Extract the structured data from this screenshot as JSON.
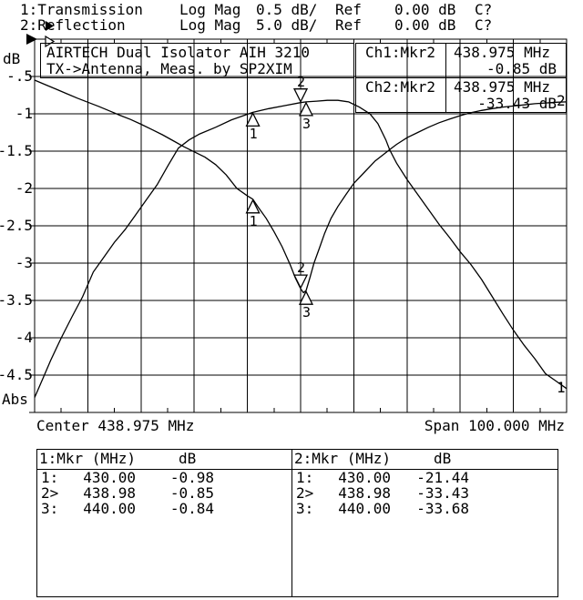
{
  "header": {
    "channels": [
      {
        "indicator": "filled-right-triangle",
        "label": "1:Transmission",
        "format": "Log Mag",
        "scale": "0.5 dB/",
        "ref_label": "Ref",
        "ref_value": "0.00 dB",
        "cal_status": "C?"
      },
      {
        "indicator": "open-right-triangle",
        "label": "2:Reflection",
        "format": "Log Mag",
        "scale": "5.0 dB/",
        "ref_label": "Ref",
        "ref_value": "0.00 dB",
        "cal_status": "C?"
      }
    ]
  },
  "plot": {
    "title_lines": [
      "AIRTECH Dual Isolator AIH 3210",
      "TX->Antenna, Meas. by SP2XIM"
    ],
    "readouts": [
      {
        "channel": "Ch1:Mkr2",
        "freq": "438.975 MHz",
        "value": "-0.85 dB"
      },
      {
        "channel": "Ch2:Mkr2",
        "freq": "438.975 MHz",
        "value": "-33.43 dB"
      }
    ],
    "y_axis": {
      "top_label": "dB",
      "bottom_label": "Abs",
      "tick_labels": [
        "-.5",
        "-1",
        "-1.5",
        "-2",
        "-2.5",
        "-3",
        "-3.5",
        "-4",
        "-4.5"
      ]
    },
    "x_axis": {
      "center_label": "Center 438.975 MHz",
      "span_label": "Span 100.000 MHz"
    }
  },
  "marker_tables": [
    {
      "header_left": "1:Mkr (MHz)",
      "header_right": "dB",
      "rows": [
        {
          "id": "1:",
          "freq": "430.00",
          "db": "-0.98"
        },
        {
          "id": "2>",
          "freq": "438.98",
          "db": "-0.85"
        },
        {
          "id": "3:",
          "freq": "440.00",
          "db": "-0.84"
        }
      ]
    },
    {
      "header_left": "2:Mkr (MHz)",
      "header_right": "dB",
      "rows": [
        {
          "id": "1:",
          "freq": "430.00",
          "db": "-21.44"
        },
        {
          "id": "2>",
          "freq": "438.98",
          "db": "-33.43"
        },
        {
          "id": "3:",
          "freq": "440.00",
          "db": "-33.68"
        }
      ]
    }
  ],
  "chart_data": {
    "type": "line",
    "title": "AIRTECH Dual Isolator AIH 3210, TX->Antenna",
    "x_axis": {
      "center_mhz": 438.975,
      "span_mhz": 100.0,
      "start_mhz": 388.975,
      "stop_mhz": 488.975,
      "divisions": 10
    },
    "y_axis": {
      "units": "dB",
      "mode": "Log Mag",
      "divisions": 10
    },
    "grid": true,
    "series": [
      {
        "name": "1:Transmission",
        "scale_db_per_div": 0.5,
        "ref_db": 0.0,
        "ylim": [
          0,
          -5
        ],
        "end_label": "1",
        "markers": [
          {
            "n": "1",
            "freq_mhz": 430.0,
            "db": -0.98,
            "active": false
          },
          {
            "n": "2",
            "freq_mhz": 438.98,
            "db": -0.85,
            "active": true
          },
          {
            "n": "3",
            "freq_mhz": 440.0,
            "db": -0.84,
            "active": false
          }
        ],
        "points": [
          [
            388.975,
            -4.8
          ],
          [
            390.5,
            -4.55
          ],
          [
            392,
            -4.3
          ],
          [
            394,
            -4.0
          ],
          [
            396,
            -3.72
          ],
          [
            398,
            -3.45
          ],
          [
            400,
            -3.12
          ],
          [
            402,
            -2.92
          ],
          [
            404,
            -2.72
          ],
          [
            406,
            -2.55
          ],
          [
            408,
            -2.35
          ],
          [
            410,
            -2.15
          ],
          [
            412,
            -1.95
          ],
          [
            414,
            -1.7
          ],
          [
            416,
            -1.46
          ],
          [
            418,
            -1.35
          ],
          [
            420,
            -1.27
          ],
          [
            423,
            -1.18
          ],
          [
            426,
            -1.08
          ],
          [
            430,
            -0.98
          ],
          [
            433,
            -0.93
          ],
          [
            436,
            -0.89
          ],
          [
            438.98,
            -0.85
          ],
          [
            440,
            -0.84
          ],
          [
            442,
            -0.83
          ],
          [
            444,
            -0.82
          ],
          [
            446,
            -0.82
          ],
          [
            448,
            -0.84
          ],
          [
            450,
            -0.91
          ],
          [
            452,
            -1.0
          ],
          [
            453.5,
            -1.13
          ],
          [
            455,
            -1.35
          ],
          [
            455.7,
            -1.48
          ],
          [
            457,
            -1.66
          ],
          [
            459,
            -1.88
          ],
          [
            461,
            -2.08
          ],
          [
            463,
            -2.28
          ],
          [
            465,
            -2.48
          ],
          [
            467,
            -2.66
          ],
          [
            469,
            -2.85
          ],
          [
            471,
            -3.02
          ],
          [
            473,
            -3.22
          ],
          [
            475,
            -3.45
          ],
          [
            477,
            -3.68
          ],
          [
            479,
            -3.9
          ],
          [
            481,
            -4.1
          ],
          [
            483,
            -4.28
          ],
          [
            485,
            -4.48
          ],
          [
            487,
            -4.58
          ],
          [
            488.975,
            -4.68
          ]
        ]
      },
      {
        "name": "2:Reflection",
        "scale_db_per_div": 5.0,
        "ref_db": 0.0,
        "ylim": [
          0,
          -50
        ],
        "end_label": "2",
        "markers": [
          {
            "n": "1",
            "freq_mhz": 430.0,
            "db": -21.44,
            "active": false
          },
          {
            "n": "2",
            "freq_mhz": 438.98,
            "db": -33.43,
            "active": true
          },
          {
            "n": "3",
            "freq_mhz": 440.0,
            "db": -33.68,
            "active": false
          }
        ],
        "points": [
          [
            388.975,
            -5.49
          ],
          [
            391,
            -6.1
          ],
          [
            393,
            -6.7
          ],
          [
            395,
            -7.3
          ],
          [
            397,
            -7.9
          ],
          [
            399,
            -8.45
          ],
          [
            401,
            -9.0
          ],
          [
            403,
            -9.6
          ],
          [
            405,
            -10.2
          ],
          [
            407,
            -10.75
          ],
          [
            409,
            -11.4
          ],
          [
            411,
            -12.1
          ],
          [
            413,
            -12.8
          ],
          [
            415,
            -13.6
          ],
          [
            417,
            -14.4
          ],
          [
            419,
            -15.1
          ],
          [
            421,
            -15.8
          ],
          [
            423,
            -16.8
          ],
          [
            425,
            -18.2
          ],
          [
            427,
            -20.0
          ],
          [
            429,
            -21.0
          ],
          [
            430,
            -21.44
          ],
          [
            431,
            -22.5
          ],
          [
            432.5,
            -24.0
          ],
          [
            434,
            -25.8
          ],
          [
            435.5,
            -27.8
          ],
          [
            437,
            -30.2
          ],
          [
            438,
            -32.0
          ],
          [
            438.98,
            -33.43
          ],
          [
            439.5,
            -33.95
          ],
          [
            440,
            -33.68
          ],
          [
            440.7,
            -32.0
          ],
          [
            441.5,
            -30.0
          ],
          [
            442.5,
            -28.0
          ],
          [
            443.5,
            -26.0
          ],
          [
            444.7,
            -24.0
          ],
          [
            446,
            -22.4
          ],
          [
            447.5,
            -20.8
          ],
          [
            449,
            -19.3
          ],
          [
            451,
            -17.8
          ],
          [
            453,
            -16.3
          ],
          [
            455,
            -15.2
          ],
          [
            455.7,
            -14.8
          ],
          [
            457,
            -14.1
          ],
          [
            459,
            -13.2
          ],
          [
            461,
            -12.5
          ],
          [
            463,
            -11.8
          ],
          [
            465,
            -11.2
          ],
          [
            467,
            -10.7
          ],
          [
            469,
            -10.25
          ],
          [
            471,
            -9.85
          ],
          [
            473,
            -9.55
          ],
          [
            475,
            -9.3
          ],
          [
            477,
            -9.1
          ],
          [
            479,
            -8.95
          ],
          [
            481,
            -8.8
          ],
          [
            483,
            -8.65
          ],
          [
            485,
            -8.55
          ],
          [
            487,
            -8.45
          ],
          [
            488.975,
            -8.4
          ]
        ]
      }
    ]
  },
  "colors": {
    "background": "#ffffff",
    "foreground": "#000000"
  }
}
